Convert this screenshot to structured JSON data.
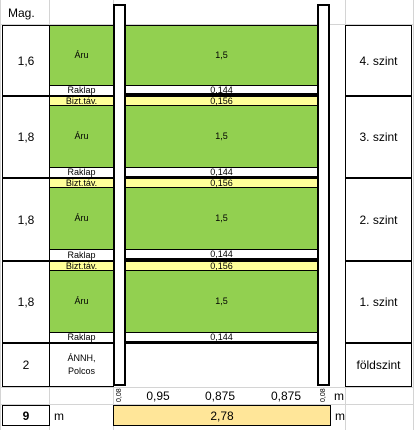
{
  "header": {
    "height_label": "Mag."
  },
  "levels": [
    {
      "name": "4. szint",
      "height": "1,6",
      "goods": "Áru",
      "goods_value": "1,5",
      "raklap": "Raklap",
      "raklap_value": "0,144"
    },
    {
      "name": "3. szint",
      "height": "1,8",
      "goods": "Áru",
      "goods_value": "1,5",
      "raklap": "Raklap",
      "raklap_value": "0,144",
      "safety": "Bizt.táv.",
      "safety_value": "0,156"
    },
    {
      "name": "2. szint",
      "height": "1,8",
      "goods": "Áru",
      "goods_value": "1,5",
      "raklap": "Raklap",
      "raklap_value": "0,144",
      "safety": "Bizt.táv.",
      "safety_value": "0,156"
    },
    {
      "name": "1. szint",
      "height": "1,8",
      "goods": "Áru",
      "goods_value": "1,5",
      "raklap": "Raklap",
      "raklap_value": "0,144",
      "safety": "Bizt.táv.",
      "safety_value": "0,156"
    }
  ],
  "ground": {
    "name": "földszint",
    "height": "2",
    "label_line1": "ÁNNH,",
    "label_line2": "Polcos"
  },
  "widths": {
    "post_left": "0,08",
    "bay1": "0,95",
    "bay2": "0,875",
    "bay3": "0,875",
    "post_right": "0,08",
    "unit": "m"
  },
  "totals": {
    "height_total": "9",
    "height_unit": "m",
    "width_total": "2,78",
    "width_unit": "m"
  },
  "colors": {
    "goods": "#92d050",
    "safety": "#ffff99",
    "total_width_fill": "#ffe699"
  }
}
